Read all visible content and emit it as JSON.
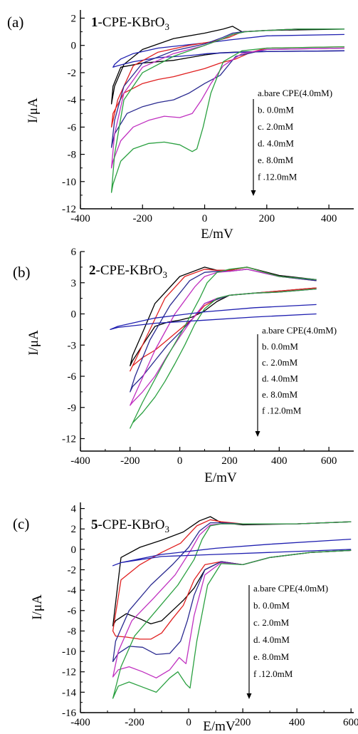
{
  "chart_data": [
    {
      "panel_label": "(a)",
      "title_bold": "1",
      "title_rest": "-CPE-KBrO",
      "title_sub": "3",
      "type": "line",
      "xlabel": "E/mV",
      "ylabel": "I/μA",
      "xlim": [
        -400,
        480
      ],
      "ylim": [
        -12,
        2.6
      ],
      "xticks": [
        -400,
        -200,
        0,
        200,
        400
      ],
      "yticks": [
        2,
        0,
        -2,
        -4,
        -6,
        -8,
        -10,
        -12
      ],
      "legend": [
        "a.bare CPE(4.0mM)",
        "b. 0.0mM",
        "c. 2.0mM",
        "d. 4.0mM",
        "e. 8.0mM",
        "f .12.0mM"
      ],
      "series": [
        {
          "color": "#000000",
          "x": [
            450,
            200,
            120,
            90,
            60,
            0,
            -100,
            -200,
            -260,
            -290,
            -300,
            -295,
            -270,
            -200,
            -100,
            -50,
            0,
            50,
            100,
            200,
            450
          ],
          "y": [
            1.2,
            1.1,
            1.0,
            1.4,
            1.2,
            0.9,
            0.5,
            -0.3,
            -1.4,
            -3.0,
            -4.3,
            -3.0,
            -1.6,
            -1.3,
            -1.1,
            -0.9,
            -0.7,
            -0.55,
            -0.5,
            -0.45,
            -0.4
          ]
        },
        {
          "color": "#1f1fb0",
          "x": [
            450,
            200,
            120,
            80,
            30,
            -50,
            -150,
            -230,
            -270,
            -290,
            -295,
            -280,
            -230,
            -150,
            -80,
            -30,
            10,
            60,
            120,
            200,
            450
          ],
          "y": [
            0.8,
            0.7,
            0.5,
            0.4,
            0.25,
            0.05,
            -0.2,
            -0.6,
            -1.0,
            -1.4,
            -1.6,
            -1.5,
            -1.2,
            -0.9,
            -0.8,
            -0.7,
            -0.6,
            -0.55,
            -0.5,
            -0.45,
            -0.4
          ]
        },
        {
          "color": "#e02020",
          "x": [
            450,
            300,
            200,
            120,
            80,
            30,
            -50,
            -150,
            -230,
            -280,
            -300,
            -295,
            -260,
            -200,
            -150,
            -100,
            -50,
            0,
            50,
            100,
            150,
            200,
            450
          ],
          "y": [
            1.2,
            1.2,
            1.1,
            1.0,
            0.6,
            0.3,
            0.0,
            -0.5,
            -1.5,
            -4.0,
            -6.0,
            -5.0,
            -3.5,
            -2.8,
            -2.5,
            -2.3,
            -2.0,
            -1.7,
            -1.3,
            -1.0,
            -0.5,
            -0.2,
            -0.1
          ]
        },
        {
          "color": "#2a2a90",
          "x": [
            450,
            300,
            200,
            120,
            90,
            60,
            0,
            -100,
            -200,
            -260,
            -290,
            -300,
            -290,
            -250,
            -200,
            -150,
            -100,
            -50,
            0,
            50,
            100,
            200,
            450
          ],
          "y": [
            1.2,
            1.2,
            1.1,
            1.0,
            0.9,
            0.6,
            0.1,
            -0.4,
            -1.3,
            -3.0,
            -5.5,
            -7.5,
            -6.5,
            -5.0,
            -4.5,
            -4.2,
            -4.0,
            -3.5,
            -2.8,
            -2.2,
            -0.8,
            -0.3,
            -0.2
          ]
        },
        {
          "color": "#c030c0",
          "x": [
            450,
            300,
            200,
            130,
            90,
            60,
            0,
            -100,
            -200,
            -260,
            -290,
            -300,
            -295,
            -270,
            -230,
            -180,
            -130,
            -80,
            -40,
            -10,
            20,
            60,
            120,
            200,
            450
          ],
          "y": [
            1.2,
            1.2,
            1.1,
            1.0,
            0.8,
            0.5,
            0.0,
            -0.6,
            -1.6,
            -3.5,
            -6.5,
            -9.0,
            -8.5,
            -7.0,
            -6.0,
            -5.5,
            -5.2,
            -5.3,
            -5.0,
            -4.0,
            -2.8,
            -1.5,
            -0.6,
            -0.3,
            -0.2
          ]
        },
        {
          "color": "#2aa040",
          "x": [
            450,
            300,
            200,
            130,
            90,
            60,
            0,
            -100,
            -200,
            -260,
            -290,
            -300,
            -295,
            -270,
            -230,
            -180,
            -130,
            -80,
            -40,
            -25,
            -5,
            20,
            60,
            120,
            200,
            450
          ],
          "y": [
            1.2,
            1.2,
            1.1,
            1.0,
            0.8,
            0.5,
            0.0,
            -0.8,
            -2.0,
            -4.0,
            -8.0,
            -10.8,
            -10.2,
            -8.5,
            -7.6,
            -7.2,
            -7.1,
            -7.3,
            -7.8,
            -7.6,
            -6.0,
            -3.5,
            -1.2,
            -0.4,
            -0.2,
            -0.1
          ]
        }
      ]
    },
    {
      "panel_label": "(b)",
      "title_bold": "2",
      "title_rest": "-CPE-KBrO",
      "title_sub": "3",
      "type": "line",
      "xlabel": "E/mV",
      "ylabel": "I/μA",
      "xlim": [
        -400,
        700
      ],
      "ylim": [
        -13.2,
        6
      ],
      "xticks": [
        -400,
        -200,
        0,
        200,
        400,
        600
      ],
      "yticks": [
        6,
        3,
        0,
        -3,
        -6,
        -9,
        -12
      ],
      "legend": [
        "a.bare CPE(4.0mM)",
        "b. 0.0mM",
        "c. 2.0mM",
        "d. 4.0mM",
        "e. 8.0mM",
        "f .12.0mM"
      ],
      "series": [
        {
          "color": "#000000",
          "x": [
            550,
            400,
            270,
            200,
            150,
            100,
            0,
            -100,
            -150,
            -190,
            -200,
            -190,
            -150,
            -100,
            -50,
            0,
            50,
            100,
            150,
            200,
            300,
            400,
            550
          ],
          "y": [
            3.3,
            3.7,
            4.5,
            4.2,
            4.2,
            4.5,
            3.6,
            1.0,
            -1.8,
            -4.0,
            -5.0,
            -4.5,
            -3.0,
            -1.2,
            -0.8,
            -0.6,
            -0.3,
            0.3,
            1.2,
            1.8,
            2.0,
            2.2,
            2.5
          ]
        },
        {
          "color": "#e02020",
          "x": [
            550,
            400,
            270,
            200,
            150,
            100,
            20,
            -60,
            -120,
            -180,
            -200,
            -190,
            -150,
            -100,
            -50,
            0,
            50,
            100,
            150,
            200,
            300,
            400,
            550
          ],
          "y": [
            3.2,
            3.6,
            4.5,
            4.2,
            4.2,
            4.3,
            3.6,
            1.5,
            -1.5,
            -4.5,
            -5.5,
            -5.0,
            -4.2,
            -3.5,
            -2.5,
            -1.5,
            -0.5,
            0.8,
            1.4,
            1.8,
            2.0,
            2.2,
            2.5
          ]
        },
        {
          "color": "#2a2a90",
          "x": [
            550,
            400,
            270,
            200,
            150,
            100,
            40,
            -40,
            -120,
            -180,
            -200,
            -190,
            -150,
            -100,
            -50,
            0,
            50,
            100,
            150,
            200,
            300,
            400,
            550
          ],
          "y": [
            3.2,
            3.6,
            4.3,
            4.1,
            4.1,
            4.0,
            3.2,
            0.8,
            -2.5,
            -6.0,
            -7.5,
            -7.0,
            -6.0,
            -4.5,
            -3.0,
            -1.8,
            -0.5,
            1.0,
            1.4,
            1.8,
            2.0,
            2.1,
            2.4
          ]
        },
        {
          "color": "#c030c0",
          "x": [
            550,
            400,
            270,
            200,
            150,
            100,
            60,
            -20,
            -100,
            -170,
            -200,
            -190,
            -150,
            -100,
            -50,
            0,
            50,
            100,
            150,
            200,
            300,
            400,
            550
          ],
          "y": [
            3.3,
            3.6,
            4.3,
            4.1,
            4.0,
            3.6,
            2.6,
            0.0,
            -3.5,
            -7.2,
            -8.8,
            -8.5,
            -7.5,
            -6.0,
            -4.0,
            -2.2,
            -0.5,
            1.0,
            1.5,
            1.8,
            2.0,
            2.1,
            2.4
          ]
        },
        {
          "color": "#2aa040",
          "x": [
            550,
            400,
            270,
            200,
            150,
            110,
            80,
            20,
            -60,
            -150,
            -200,
            -190,
            -150,
            -100,
            -60,
            -20,
            20,
            60,
            100,
            150,
            200,
            300,
            400,
            550
          ],
          "y": [
            3.3,
            3.6,
            4.5,
            4.3,
            4.0,
            3.0,
            1.5,
            -1.2,
            -4.5,
            -8.5,
            -11.0,
            -10.5,
            -9.5,
            -8.0,
            -6.5,
            -4.8,
            -3.0,
            -1.0,
            0.5,
            1.5,
            1.8,
            2.0,
            2.1,
            2.4
          ]
        },
        {
          "color": "#1f1fb0",
          "x": [
            550,
            300,
            100,
            -100,
            -250,
            -280,
            -250,
            -100,
            100,
            300,
            550
          ],
          "y": [
            0.9,
            0.6,
            0.2,
            -0.4,
            -1.2,
            -1.5,
            -1.3,
            -0.9,
            -0.6,
            -0.3,
            0.0
          ]
        }
      ]
    },
    {
      "panel_label": "(c)",
      "title_bold": "5",
      "title_rest": "-CPE-KBrO",
      "title_sub": "3",
      "type": "line",
      "xlabel": "E/mV",
      "ylabel": "I/μA",
      "xlim": [
        -400,
        610
      ],
      "ylim": [
        -16,
        4.6
      ],
      "xticks": [
        -400,
        -200,
        0,
        200,
        400,
        600
      ],
      "yticks": [
        4,
        2,
        0,
        -2,
        -4,
        -6,
        -8,
        -10,
        -12,
        -14,
        -16
      ],
      "legend": [
        "a.bare CPE(4.0mM)",
        "b. 0.0mM",
        "c. 2.0mM",
        "d. 4.0mM",
        "e. 8.0mM",
        "f .12.0mM"
      ],
      "series": [
        {
          "color": "#000000",
          "x": [
            600,
            400,
            200,
            120,
            80,
            40,
            -20,
            -100,
            -180,
            -250,
            -280,
            -270,
            -230,
            -180,
            -140,
            -100,
            -60,
            -20,
            20,
            60,
            120,
            200,
            300,
            450,
            600
          ],
          "y": [
            2.7,
            2.5,
            2.4,
            2.6,
            3.2,
            2.8,
            1.7,
            0.9,
            0.2,
            -0.8,
            -7.5,
            -7.0,
            -6.3,
            -6.8,
            -7.3,
            -7.0,
            -6.0,
            -5.0,
            -3.8,
            -2.0,
            -1.2,
            -1.5,
            -0.8,
            -0.3,
            -0.1
          ]
        },
        {
          "color": "#e02020",
          "x": [
            600,
            400,
            200,
            120,
            80,
            30,
            -30,
            -100,
            -180,
            -250,
            -280,
            -270,
            -230,
            -180,
            -140,
            -100,
            -60,
            -20,
            20,
            60,
            120,
            200,
            300,
            450,
            600
          ],
          "y": [
            2.7,
            2.5,
            2.5,
            2.7,
            2.9,
            2.3,
            0.6,
            -0.3,
            -1.5,
            -3.0,
            -8.0,
            -8.5,
            -8.6,
            -8.8,
            -8.8,
            -8.2,
            -6.8,
            -5.5,
            -3.0,
            -1.5,
            -1.2,
            -1.5,
            -0.8,
            -0.3,
            -0.1
          ]
        },
        {
          "color": "#2a2a90",
          "x": [
            600,
            400,
            200,
            120,
            80,
            40,
            0,
            -60,
            -140,
            -220,
            -270,
            -280,
            -260,
            -220,
            -170,
            -120,
            -70,
            -30,
            -5,
            20,
            60,
            120,
            200,
            300,
            450,
            600
          ],
          "y": [
            2.7,
            2.5,
            2.5,
            2.6,
            2.6,
            1.8,
            0.2,
            -1.5,
            -3.5,
            -6.0,
            -9.0,
            -11.0,
            -10.2,
            -9.5,
            -9.6,
            -10.3,
            -10.2,
            -9.0,
            -7.0,
            -4.5,
            -2.0,
            -1.2,
            -1.5,
            -0.8,
            -0.3,
            -0.1
          ]
        },
        {
          "color": "#c030c0",
          "x": [
            600,
            400,
            200,
            120,
            80,
            40,
            10,
            -50,
            -130,
            -210,
            -260,
            -280,
            -260,
            -220,
            -170,
            -120,
            -70,
            -35,
            -10,
            20,
            60,
            120,
            200,
            300,
            450,
            600
          ],
          "y": [
            2.7,
            2.5,
            2.5,
            2.5,
            2.4,
            1.4,
            0.0,
            -2.5,
            -4.8,
            -7.0,
            -10.0,
            -12.5,
            -11.8,
            -11.5,
            -12.0,
            -12.6,
            -11.8,
            -10.6,
            -11.2,
            -6.5,
            -2.5,
            -1.3,
            -1.5,
            -0.8,
            -0.3,
            -0.1
          ]
        },
        {
          "color": "#2aa040",
          "x": [
            600,
            400,
            200,
            120,
            80,
            50,
            20,
            -40,
            -120,
            -200,
            -250,
            -280,
            -260,
            -220,
            -170,
            -120,
            -70,
            -40,
            -10,
            5,
            30,
            70,
            120,
            200,
            300,
            450,
            600
          ],
          "y": [
            2.7,
            2.5,
            2.5,
            2.5,
            2.3,
            1.0,
            -1.0,
            -3.5,
            -6.0,
            -8.5,
            -11.5,
            -14.6,
            -13.4,
            -13.0,
            -13.5,
            -14.0,
            -12.6,
            -12.0,
            -13.2,
            -13.6,
            -9.0,
            -3.5,
            -1.4,
            -1.5,
            -0.8,
            -0.3,
            -0.1
          ]
        },
        {
          "color": "#1f1fb0",
          "x": [
            600,
            300,
            100,
            -100,
            -250,
            -280,
            -250,
            -100,
            100,
            300,
            600
          ],
          "y": [
            1.0,
            0.5,
            0.1,
            -0.5,
            -1.3,
            -1.6,
            -1.3,
            -0.7,
            -0.5,
            -0.3,
            0.0
          ]
        }
      ]
    }
  ]
}
